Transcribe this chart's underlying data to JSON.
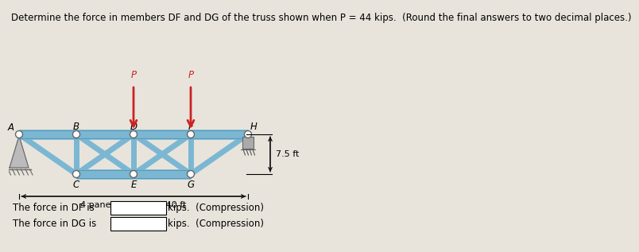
{
  "title": "Determine the force in members DF and DG of the truss shown when P = 44 kips.  (Round the final answers to two decimal places.)",
  "bg_color": "#e8e4dc",
  "truss_fill": "#8dc8e0",
  "truss_edge": "#5a9ab8",
  "node_color": "white",
  "node_edge": "#555555",
  "arrow_color": "#cc2222",
  "p_label": "P",
  "dim_label": "7.5 ft",
  "panel_label": "4 panels at 10 ft = 40 ft",
  "df_label": "The force in DF is",
  "dg_label": "The force in DG is",
  "kips_label": "kips.  (Compression)",
  "font_title": 8.5,
  "font_body": 8.5,
  "sx": 0.72,
  "sy": 0.5,
  "ox": 0.13,
  "oy": 1.38
}
